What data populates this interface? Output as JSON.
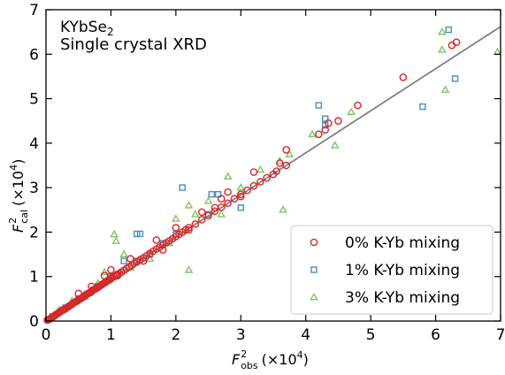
{
  "chart_data": {
    "type": "scatter",
    "title": "",
    "annotation": {
      "line1_main": "KYbSe",
      "line1_sub": "2",
      "line2": "Single crystal XRD"
    },
    "xlabel": {
      "main": "F",
      "sup": "2",
      "sub": "obs",
      "suffix": "(×10",
      "exp": "4",
      "close": ")"
    },
    "ylabel": {
      "main": "F",
      "sup": "2",
      "sub": "cal",
      "suffix": "(×10",
      "exp": "4",
      "close": ")"
    },
    "xlim": [
      0,
      7
    ],
    "ylim": [
      0,
      7
    ],
    "xticks": [
      "0",
      "1",
      "2",
      "3",
      "4",
      "5",
      "6",
      "7"
    ],
    "yticks": [
      "0",
      "1",
      "2",
      "3",
      "4",
      "5",
      "6",
      "7"
    ],
    "grid": false,
    "legend_position": "bottom-right",
    "fit_line": {
      "x": [
        0,
        7
      ],
      "y": [
        0,
        6.62
      ],
      "color": "#808080"
    },
    "series": [
      {
        "name": "0% K-Yb mixing",
        "marker": "circle",
        "color": "#d62728",
        "points": [
          [
            0.02,
            0.02
          ],
          [
            0.04,
            0.03
          ],
          [
            0.06,
            0.05
          ],
          [
            0.08,
            0.07
          ],
          [
            0.1,
            0.09
          ],
          [
            0.12,
            0.11
          ],
          [
            0.14,
            0.13
          ],
          [
            0.16,
            0.15
          ],
          [
            0.18,
            0.17
          ],
          [
            0.2,
            0.19
          ],
          [
            0.22,
            0.21
          ],
          [
            0.24,
            0.23
          ],
          [
            0.26,
            0.25
          ],
          [
            0.28,
            0.26
          ],
          [
            0.3,
            0.28
          ],
          [
            0.32,
            0.3
          ],
          [
            0.34,
            0.32
          ],
          [
            0.36,
            0.34
          ],
          [
            0.38,
            0.36
          ],
          [
            0.4,
            0.38
          ],
          [
            0.42,
            0.4
          ],
          [
            0.44,
            0.42
          ],
          [
            0.46,
            0.44
          ],
          [
            0.48,
            0.45
          ],
          [
            0.5,
            0.47
          ],
          [
            0.52,
            0.5
          ],
          [
            0.54,
            0.51
          ],
          [
            0.56,
            0.53
          ],
          [
            0.58,
            0.55
          ],
          [
            0.6,
            0.57
          ],
          [
            0.62,
            0.6
          ],
          [
            0.64,
            0.61
          ],
          [
            0.66,
            0.63
          ],
          [
            0.68,
            0.64
          ],
          [
            0.7,
            0.66
          ],
          [
            0.72,
            0.7
          ],
          [
            0.74,
            0.71
          ],
          [
            0.76,
            0.72
          ],
          [
            0.78,
            0.74
          ],
          [
            0.8,
            0.76
          ],
          [
            0.82,
            0.78
          ],
          [
            0.84,
            0.8
          ],
          [
            0.86,
            0.82
          ],
          [
            0.88,
            0.84
          ],
          [
            0.9,
            0.86
          ],
          [
            0.92,
            0.88
          ],
          [
            0.94,
            0.9
          ],
          [
            0.96,
            0.92
          ],
          [
            0.98,
            0.93
          ],
          [
            1.0,
            0.95
          ],
          [
            1.02,
            0.98
          ],
          [
            1.05,
            1.0
          ],
          [
            1.08,
            1.02
          ],
          [
            1.1,
            1.05
          ],
          [
            1.13,
            1.07
          ],
          [
            1.16,
            1.1
          ],
          [
            1.2,
            1.14
          ],
          [
            1.24,
            1.18
          ],
          [
            1.28,
            1.22
          ],
          [
            1.32,
            1.25
          ],
          [
            1.36,
            1.3
          ],
          [
            1.4,
            1.33
          ],
          [
            1.45,
            1.38
          ],
          [
            1.5,
            1.42
          ],
          [
            1.55,
            1.47
          ],
          [
            1.6,
            1.52
          ],
          [
            1.65,
            1.57
          ],
          [
            1.7,
            1.62
          ],
          [
            1.75,
            1.66
          ],
          [
            1.8,
            1.71
          ],
          [
            1.85,
            1.76
          ],
          [
            1.9,
            1.8
          ],
          [
            1.95,
            1.85
          ],
          [
            2.0,
            1.9
          ],
          [
            2.05,
            1.95
          ],
          [
            2.1,
            2.0
          ],
          [
            2.15,
            2.05
          ],
          [
            2.2,
            2.1
          ],
          [
            2.3,
            2.18
          ],
          [
            2.4,
            2.28
          ],
          [
            2.5,
            2.37
          ],
          [
            2.6,
            2.47
          ],
          [
            2.7,
            2.56
          ],
          [
            2.8,
            2.65
          ],
          [
            2.9,
            2.75
          ],
          [
            3.0,
            2.85
          ],
          [
            3.1,
            2.94
          ],
          [
            3.2,
            3.04
          ],
          [
            3.3,
            3.13
          ],
          [
            3.4,
            3.22
          ],
          [
            3.55,
            3.37
          ],
          [
            3.7,
            3.5
          ],
          [
            0.5,
            0.62
          ],
          [
            0.7,
            0.78
          ],
          [
            0.9,
            1.02
          ],
          [
            1.0,
            1.15
          ],
          [
            1.1,
            1.02
          ],
          [
            1.3,
            1.4
          ],
          [
            1.5,
            1.35
          ],
          [
            1.7,
            1.82
          ],
          [
            1.8,
            1.6
          ],
          [
            2.0,
            2.1
          ],
          [
            2.2,
            2.05
          ],
          [
            2.4,
            2.45
          ],
          [
            2.6,
            2.55
          ],
          [
            2.7,
            2.75
          ],
          [
            2.8,
            2.9
          ],
          [
            3.0,
            2.8
          ],
          [
            3.2,
            3.35
          ],
          [
            3.5,
            3.3
          ],
          [
            3.6,
            3.55
          ],
          [
            3.7,
            3.85
          ],
          [
            4.2,
            4.2
          ],
          [
            4.3,
            4.3
          ],
          [
            4.35,
            4.45
          ],
          [
            4.5,
            4.5
          ],
          [
            4.8,
            4.85
          ],
          [
            5.5,
            5.48
          ],
          [
            6.25,
            6.2
          ],
          [
            6.32,
            6.27
          ]
        ]
      },
      {
        "name": "1% K-Yb mixing",
        "marker": "square",
        "color": "#4a8dc0",
        "points": [
          [
            0.1,
            0.1
          ],
          [
            0.3,
            0.3
          ],
          [
            0.5,
            0.5
          ],
          [
            0.8,
            0.78
          ],
          [
            1.0,
            1.0
          ],
          [
            1.2,
            1.35
          ],
          [
            1.4,
            1.35
          ],
          [
            1.4,
            1.96
          ],
          [
            1.45,
            1.96
          ],
          [
            1.6,
            1.5
          ],
          [
            1.8,
            1.75
          ],
          [
            2.0,
            1.95
          ],
          [
            2.1,
            3.0
          ],
          [
            2.5,
            2.4
          ],
          [
            2.55,
            2.85
          ],
          [
            2.65,
            2.85
          ],
          [
            3.0,
            2.55
          ],
          [
            4.2,
            4.85
          ],
          [
            4.3,
            4.55
          ],
          [
            4.3,
            4.4
          ],
          [
            5.8,
            4.82
          ],
          [
            6.2,
            6.55
          ],
          [
            6.3,
            5.45
          ]
        ]
      },
      {
        "name": "3% K-Yb mixing",
        "marker": "triangle",
        "color": "#7fc466",
        "points": [
          [
            0.2,
            0.25
          ],
          [
            0.4,
            0.45
          ],
          [
            0.6,
            0.55
          ],
          [
            0.8,
            0.85
          ],
          [
            0.9,
            1.1
          ],
          [
            1.05,
            1.95
          ],
          [
            1.08,
            1.8
          ],
          [
            1.2,
            1.5
          ],
          [
            1.3,
            1.2
          ],
          [
            1.6,
            1.4
          ],
          [
            1.9,
            1.75
          ],
          [
            2.0,
            2.3
          ],
          [
            2.2,
            2.6
          ],
          [
            2.2,
            1.15
          ],
          [
            2.3,
            2.4
          ],
          [
            2.5,
            2.7
          ],
          [
            2.7,
            2.4
          ],
          [
            2.8,
            3.25
          ],
          [
            3.0,
            3.0
          ],
          [
            3.3,
            3.4
          ],
          [
            3.6,
            3.6
          ],
          [
            3.65,
            2.5
          ],
          [
            3.75,
            3.75
          ],
          [
            4.1,
            4.2
          ],
          [
            4.45,
            3.95
          ],
          [
            4.7,
            4.7
          ],
          [
            6.1,
            6.5
          ],
          [
            6.1,
            6.1
          ],
          [
            6.15,
            5.2
          ],
          [
            6.95,
            6.05
          ]
        ]
      }
    ]
  }
}
